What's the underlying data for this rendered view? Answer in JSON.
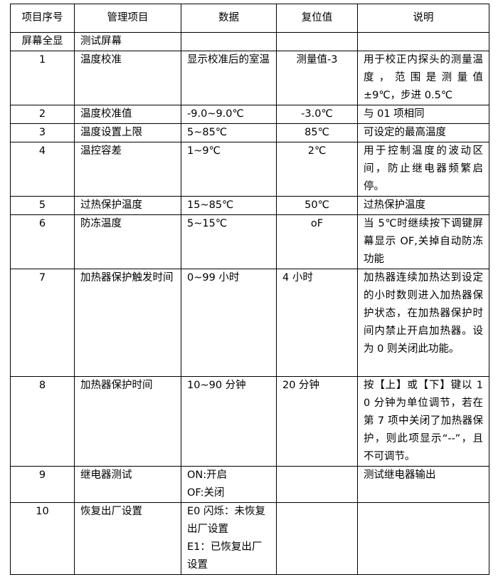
{
  "headers": [
    "项目序号",
    "管理项目",
    "数据",
    "复位值",
    "说明"
  ],
  "rows": [
    {
      "no": "屏幕全显",
      "item": "测试屏幕",
      "data": "",
      "reset": "",
      "desc": ""
    },
    {
      "no": "1",
      "item": "温度校准",
      "data": "显示校准后的室温",
      "reset": "测量值-3",
      "desc": "用于校正内探头的测量温度，范围是测量值±9℃，步进 0.5℃"
    },
    {
      "no": "2",
      "item": "温度校准值",
      "data": "-9.0~9.0℃",
      "reset": "-3.0℃",
      "desc": "与 01 项相同"
    },
    {
      "no": "3",
      "item": "温度设置上限",
      "data": "5~85℃",
      "reset": "85℃",
      "desc": "可设定的最高温度"
    },
    {
      "no": "4",
      "item": "温控容差",
      "data": "1~9℃",
      "reset": "2℃",
      "desc": "用于控制温度的波动区间，防止继电器频繁启停。"
    },
    {
      "no": "5",
      "item": "过热保护温度",
      "data": "15~85℃",
      "reset": "50℃",
      "desc": "过热保护温度"
    },
    {
      "no": "6",
      "item": "防冻温度",
      "data": "5~15℃",
      "reset": "oF",
      "desc": "当 5℃时继续按下调键屏幕显示 OF,关掉自动防冻功能"
    },
    {
      "no": "7",
      "item": "加热器保护触发时间",
      "data": "0~99 小时",
      "reset": "4 小时",
      "desc": "加热器连续加热达到设定的小时数则进入加热器保护状态，在加热器保护时间内禁止开启加热器。设为 0 则关闭此功能。"
    },
    {
      "no": "8",
      "item": "加热器保护时间",
      "data": "10~90 分钟",
      "reset": "20 分钟",
      "desc": "按【上】或【下】键以 10 分钟为单位调节，若在第 7 项中关闭了加热器保护，则此项显示“--”，且不可调节。"
    },
    {
      "no": "9",
      "item": "继电器测试",
      "data": "ON:开启\nOF:关闭",
      "reset": "",
      "desc": "测试继电器输出"
    },
    {
      "no": "10",
      "item": "恢复出厂设置",
      "data": "E0 闪烁：未恢复出厂设置\nE1：已恢复出厂设置",
      "reset": "",
      "desc": ""
    }
  ]
}
